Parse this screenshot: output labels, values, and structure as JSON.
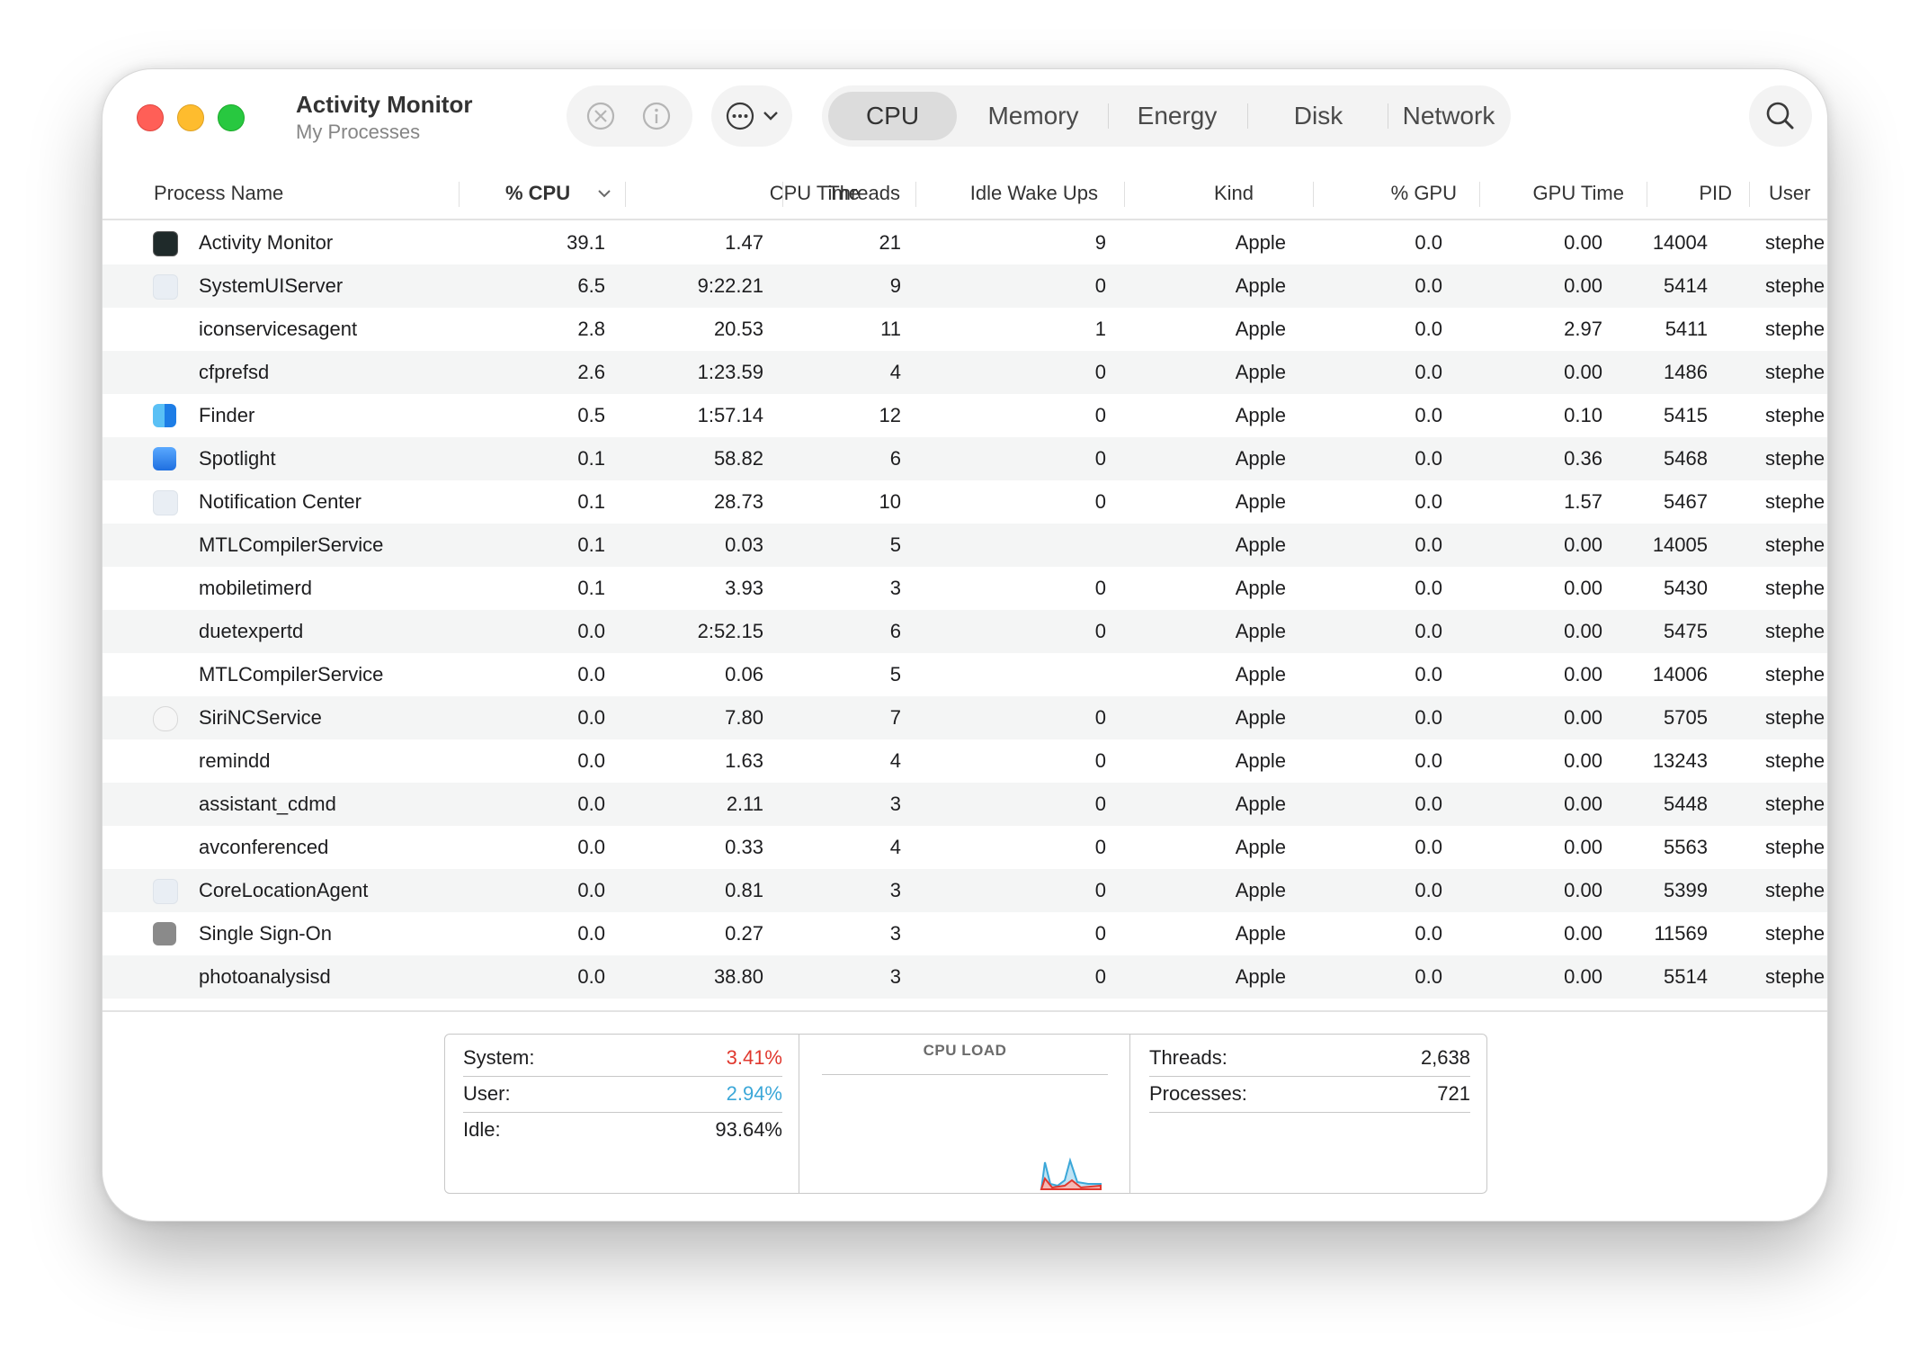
{
  "window": {
    "title": "Activity Monitor",
    "subtitle": "My Processes"
  },
  "toolbar": {
    "stop_icon": "stop-process-icon",
    "info_icon": "info-icon",
    "more_icon": "ellipsis-circle-icon",
    "search_icon": "search-icon"
  },
  "tabs": [
    {
      "label": "CPU",
      "active": true
    },
    {
      "label": "Memory",
      "active": false
    },
    {
      "label": "Energy",
      "active": false
    },
    {
      "label": "Disk",
      "active": false
    },
    {
      "label": "Network",
      "active": false
    }
  ],
  "columns": {
    "name": "Process Name",
    "cpu": "% CPU",
    "cpu_time": "CPU Time",
    "threads": "Threads",
    "idle": "Idle Wake Ups",
    "kind": "Kind",
    "gpu": "% GPU",
    "gpu_time": "GPU Time",
    "pid": "PID",
    "user": "User"
  },
  "processes": [
    {
      "name": "Activity Monitor",
      "icon": "activity-monitor-icon",
      "cpu": "39.1",
      "cpu_time": "1.47",
      "threads": "21",
      "idle": "9",
      "kind": "Apple",
      "gpu": "0.0",
      "gpu_time": "0.00",
      "pid": "14004",
      "user": "stephe"
    },
    {
      "name": "SystemUIServer",
      "icon": "generic-app-icon",
      "cpu": "6.5",
      "cpu_time": "9:22.21",
      "threads": "9",
      "idle": "0",
      "kind": "Apple",
      "gpu": "0.0",
      "gpu_time": "0.00",
      "pid": "5414",
      "user": "stephe"
    },
    {
      "name": "iconservicesagent",
      "icon": "",
      "cpu": "2.8",
      "cpu_time": "20.53",
      "threads": "11",
      "idle": "1",
      "kind": "Apple",
      "gpu": "0.0",
      "gpu_time": "2.97",
      "pid": "5411",
      "user": "stephe"
    },
    {
      "name": "cfprefsd",
      "icon": "",
      "cpu": "2.6",
      "cpu_time": "1:23.59",
      "threads": "4",
      "idle": "0",
      "kind": "Apple",
      "gpu": "0.0",
      "gpu_time": "0.00",
      "pid": "1486",
      "user": "stephe"
    },
    {
      "name": "Finder",
      "icon": "finder-icon",
      "cpu": "0.5",
      "cpu_time": "1:57.14",
      "threads": "12",
      "idle": "0",
      "kind": "Apple",
      "gpu": "0.0",
      "gpu_time": "0.10",
      "pid": "5415",
      "user": "stephe"
    },
    {
      "name": "Spotlight",
      "icon": "spotlight-icon",
      "cpu": "0.1",
      "cpu_time": "58.82",
      "threads": "6",
      "idle": "0",
      "kind": "Apple",
      "gpu": "0.0",
      "gpu_time": "0.36",
      "pid": "5468",
      "user": "stephe"
    },
    {
      "name": "Notification Center",
      "icon": "generic-app-icon",
      "cpu": "0.1",
      "cpu_time": "28.73",
      "threads": "10",
      "idle": "0",
      "kind": "Apple",
      "gpu": "0.0",
      "gpu_time": "1.57",
      "pid": "5467",
      "user": "stephe"
    },
    {
      "name": "MTLCompilerService",
      "icon": "",
      "cpu": "0.1",
      "cpu_time": "0.03",
      "threads": "5",
      "idle": "",
      "kind": "Apple",
      "gpu": "0.0",
      "gpu_time": "0.00",
      "pid": "14005",
      "user": "stephe"
    },
    {
      "name": "mobiletimerd",
      "icon": "",
      "cpu": "0.1",
      "cpu_time": "3.93",
      "threads": "3",
      "idle": "0",
      "kind": "Apple",
      "gpu": "0.0",
      "gpu_time": "0.00",
      "pid": "5430",
      "user": "stephe"
    },
    {
      "name": "duetexpertd",
      "icon": "",
      "cpu": "0.0",
      "cpu_time": "2:52.15",
      "threads": "6",
      "idle": "0",
      "kind": "Apple",
      "gpu": "0.0",
      "gpu_time": "0.00",
      "pid": "5475",
      "user": "stephe"
    },
    {
      "name": "MTLCompilerService",
      "icon": "",
      "cpu": "0.0",
      "cpu_time": "0.06",
      "threads": "5",
      "idle": "",
      "kind": "Apple",
      "gpu": "0.0",
      "gpu_time": "0.00",
      "pid": "14006",
      "user": "stephe"
    },
    {
      "name": "SiriNCService",
      "icon": "siri-shield-icon",
      "cpu": "0.0",
      "cpu_time": "7.80",
      "threads": "7",
      "idle": "0",
      "kind": "Apple",
      "gpu": "0.0",
      "gpu_time": "0.00",
      "pid": "5705",
      "user": "stephe"
    },
    {
      "name": "remindd",
      "icon": "",
      "cpu": "0.0",
      "cpu_time": "1.63",
      "threads": "4",
      "idle": "0",
      "kind": "Apple",
      "gpu": "0.0",
      "gpu_time": "0.00",
      "pid": "13243",
      "user": "stephe"
    },
    {
      "name": "assistant_cdmd",
      "icon": "",
      "cpu": "0.0",
      "cpu_time": "2.11",
      "threads": "3",
      "idle": "0",
      "kind": "Apple",
      "gpu": "0.0",
      "gpu_time": "0.00",
      "pid": "5448",
      "user": "stephe"
    },
    {
      "name": "avconferenced",
      "icon": "",
      "cpu": "0.0",
      "cpu_time": "0.33",
      "threads": "4",
      "idle": "0",
      "kind": "Apple",
      "gpu": "0.0",
      "gpu_time": "0.00",
      "pid": "5563",
      "user": "stephe"
    },
    {
      "name": "CoreLocationAgent",
      "icon": "generic-app-icon",
      "cpu": "0.0",
      "cpu_time": "0.81",
      "threads": "3",
      "idle": "0",
      "kind": "Apple",
      "gpu": "0.0",
      "gpu_time": "0.00",
      "pid": "5399",
      "user": "stephe"
    },
    {
      "name": "Single Sign-On",
      "icon": "single-sign-on-icon",
      "cpu": "0.0",
      "cpu_time": "0.27",
      "threads": "3",
      "idle": "0",
      "kind": "Apple",
      "gpu": "0.0",
      "gpu_time": "0.00",
      "pid": "11569",
      "user": "stephe"
    },
    {
      "name": "photoanalysisd",
      "icon": "",
      "cpu": "0.0",
      "cpu_time": "38.80",
      "threads": "3",
      "idle": "0",
      "kind": "Apple",
      "gpu": "0.0",
      "gpu_time": "0.00",
      "pid": "5514",
      "user": "stephe"
    }
  ],
  "stats": {
    "system_label": "System:",
    "system_value": "3.41%",
    "system_color": "#e0382e",
    "user_label": "User:",
    "user_value": "2.94%",
    "user_color": "#3ba7d8",
    "idle_label": "Idle:",
    "idle_value": "93.64%",
    "chart_title": "CPU LOAD",
    "threads_label": "Threads:",
    "threads_value": "2,638",
    "processes_label": "Processes:",
    "processes_value": "721"
  },
  "colors": {
    "close": "#ff5f57",
    "minimize": "#febc2e",
    "zoom": "#28c840"
  }
}
